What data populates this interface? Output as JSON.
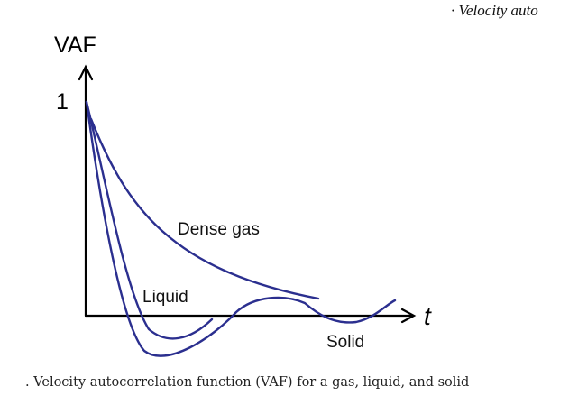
{
  "header": {
    "fragment": "· Velocity auto"
  },
  "caption": ". Velocity autocorrelation function (VAF) for a gas, liquid, and solid",
  "chart_data": {
    "type": "line",
    "title": "",
    "ylabel": "VAF",
    "xlabel": "t",
    "y_tick_label": "1",
    "series": [
      {
        "name": "Dense gas",
        "label_color": "#111111",
        "color": "#2b2f8f"
      },
      {
        "name": "Liquid",
        "label_color": "#111111",
        "color": "#2b2f8f"
      },
      {
        "name": "Solid",
        "label_color": "#111111",
        "color": "#2b2f8f"
      }
    ],
    "grid": false,
    "legend": "none (curves labeled directly)"
  }
}
